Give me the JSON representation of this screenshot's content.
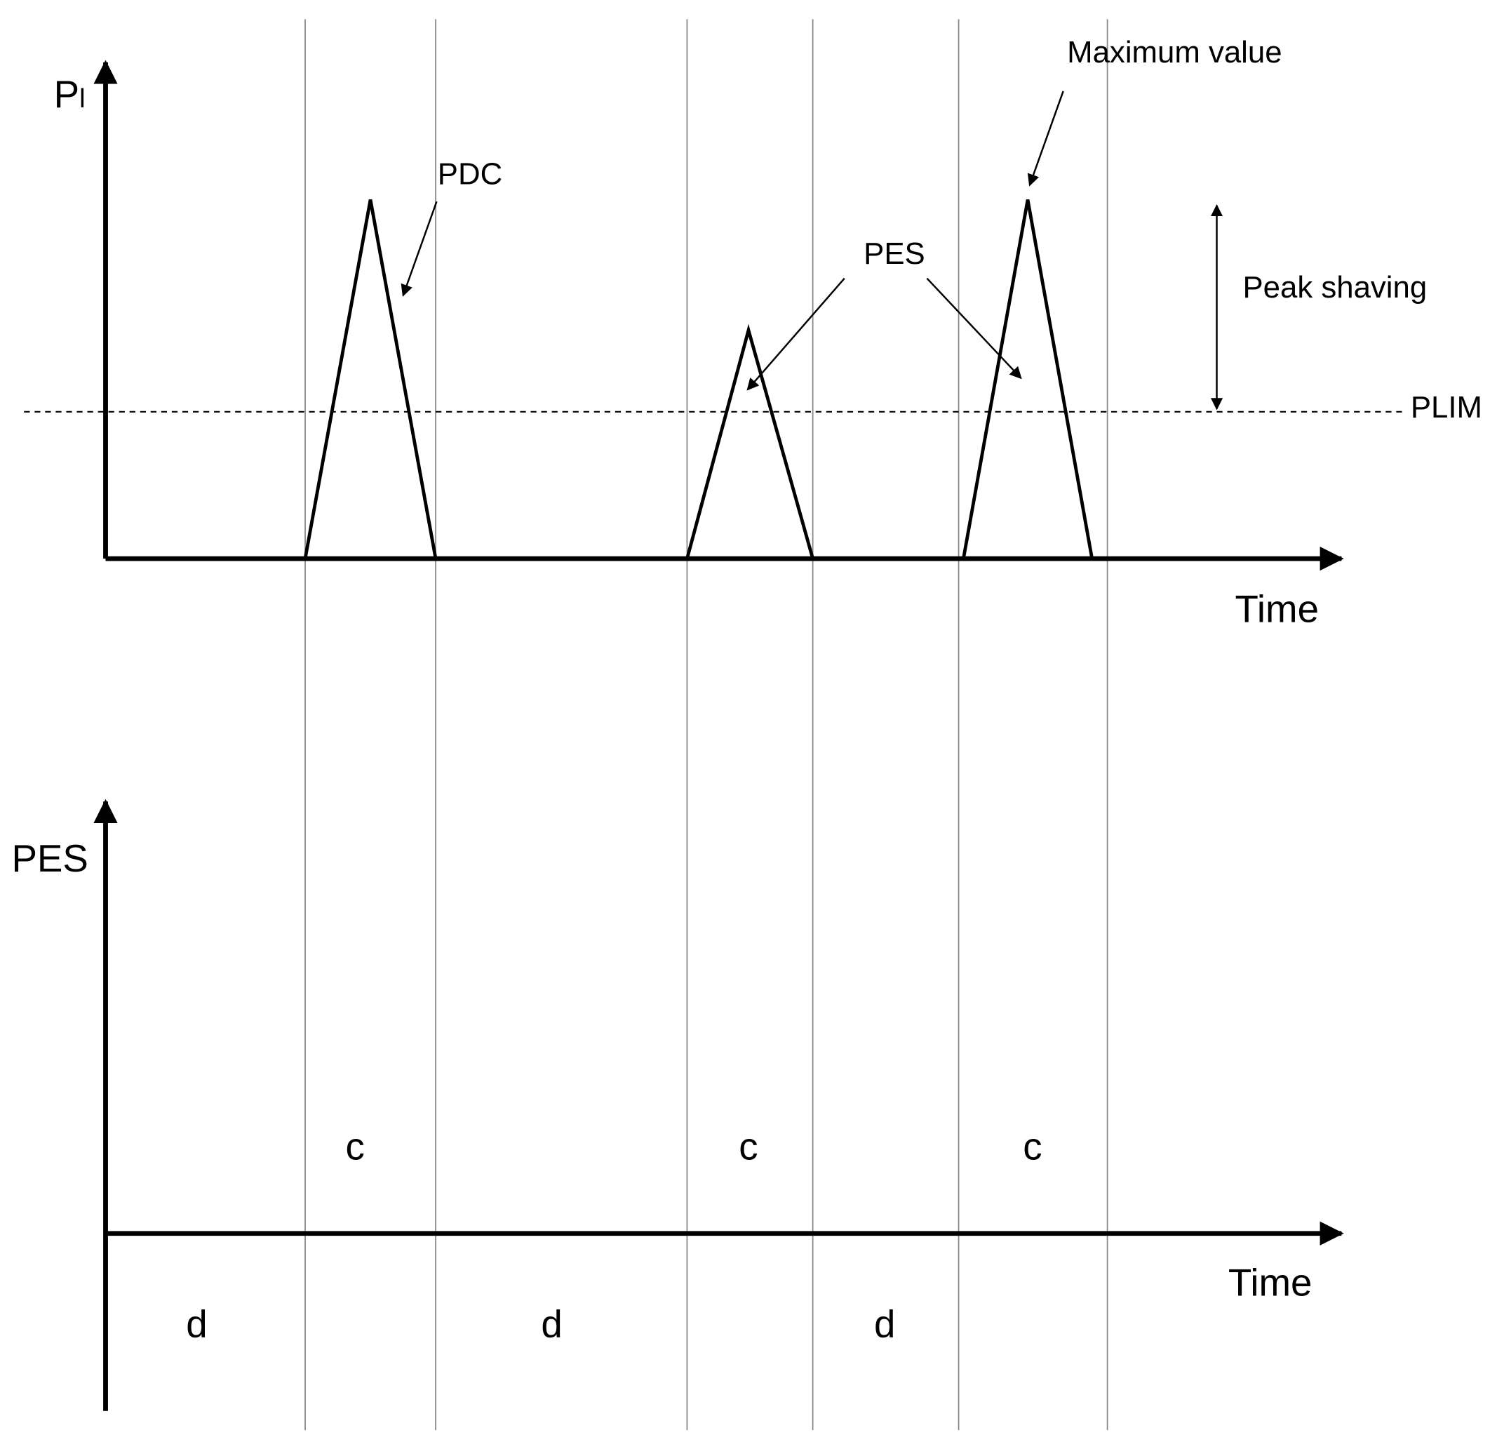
{
  "top_panel": {
    "y_label": {
      "main": "P",
      "sub": "l"
    },
    "x_label": "Time",
    "annotations": {
      "pdc": "PDC",
      "pes": "PES",
      "maximum": "Maximum value",
      "peak_shaving": "Peak shaving",
      "plim": "PLIM"
    }
  },
  "bottom_panel": {
    "y_label": "PES",
    "x_label": "Time",
    "charge_labels": [
      "c",
      "c",
      "c"
    ],
    "discharge_labels": [
      "d",
      "d",
      "d"
    ]
  }
}
